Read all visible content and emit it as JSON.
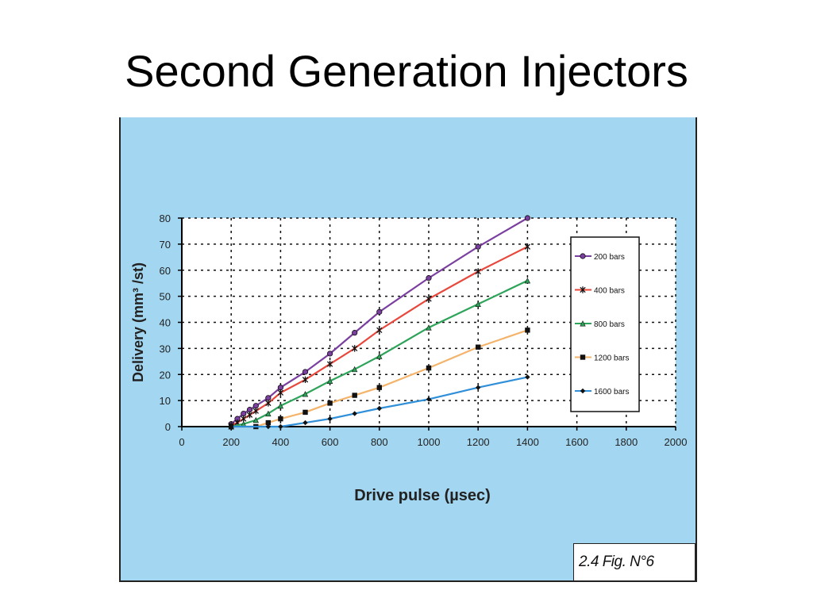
{
  "slide": {
    "title": "Second Generation Injectors",
    "figure_label": "2.4 Fig. N°6"
  },
  "chart_data": {
    "type": "line",
    "title": "",
    "xlabel": "Drive pulse (µsec)",
    "ylabel": "Delivery (mm³ /st)",
    "xlim": [
      0,
      2000
    ],
    "ylim": [
      0,
      80
    ],
    "xticks": [
      0,
      200,
      400,
      600,
      800,
      1000,
      1200,
      1400,
      1600,
      1800,
      2000
    ],
    "yticks": [
      0,
      10,
      20,
      30,
      40,
      50,
      60,
      70,
      80
    ],
    "grid": true,
    "legend_position": "right",
    "series": [
      {
        "name": "200 bars",
        "color": "#7b3fa0",
        "marker": "circle",
        "x": [
          200,
          225,
          250,
          275,
          300,
          350,
          400,
          500,
          600,
          700,
          800,
          1000,
          1200,
          1400
        ],
        "y": [
          1,
          3,
          5,
          6.5,
          8,
          11,
          15,
          21,
          28,
          36,
          44,
          57,
          69,
          80
        ]
      },
      {
        "name": "400 bars",
        "color": "#e8473b",
        "marker": "star",
        "x": [
          200,
          225,
          250,
          275,
          300,
          350,
          400,
          500,
          600,
          700,
          800,
          1000,
          1200,
          1400
        ],
        "y": [
          0.5,
          1.5,
          3,
          4.5,
          6,
          9,
          13,
          18,
          24,
          30,
          37,
          49,
          59.5,
          69
        ]
      },
      {
        "name": "800 bars",
        "color": "#2ea35a",
        "marker": "triangle",
        "x": [
          200,
          250,
          300,
          350,
          400,
          500,
          600,
          700,
          800,
          1000,
          1200,
          1400
        ],
        "y": [
          0,
          1,
          2.5,
          5,
          8,
          12.5,
          17.5,
          22,
          27,
          38,
          47,
          56
        ]
      },
      {
        "name": "1200 bars",
        "color": "#f4b36b",
        "marker": "square",
        "x": [
          200,
          300,
          350,
          400,
          500,
          600,
          700,
          800,
          1000,
          1200,
          1400
        ],
        "y": [
          0,
          0,
          1.5,
          3,
          5.5,
          9,
          12,
          15,
          22.5,
          30.5,
          37
        ]
      },
      {
        "name": "1600 bars",
        "color": "#2f8fd8",
        "marker": "diamond",
        "x": [
          200,
          350,
          400,
          500,
          600,
          700,
          800,
          1000,
          1200,
          1400
        ],
        "y": [
          0,
          0,
          0,
          1.5,
          3,
          5,
          7,
          10.5,
          15,
          19
        ]
      }
    ]
  }
}
